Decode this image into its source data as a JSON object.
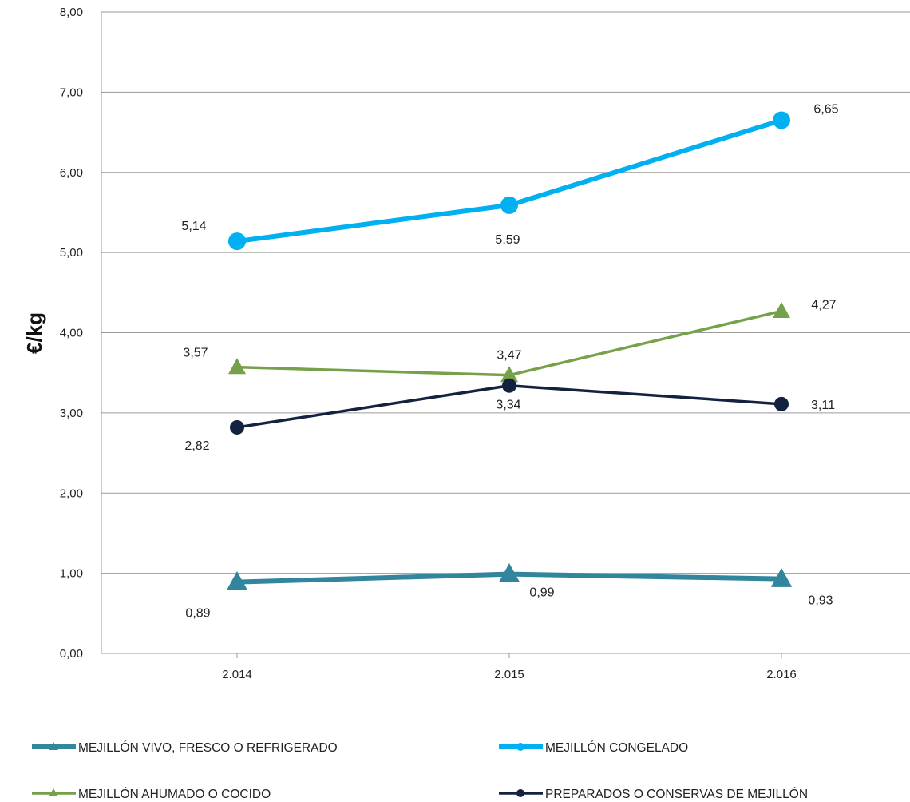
{
  "chart_data": {
    "type": "line",
    "ylabel": "€/kg",
    "ylim": [
      0,
      8
    ],
    "yticks": [
      "0,00",
      "1,00",
      "2,00",
      "3,00",
      "4,00",
      "5,00",
      "6,00",
      "7,00",
      "8,00"
    ],
    "categories": [
      "2.014",
      "2.015",
      "2.016"
    ],
    "grid": "horizontal",
    "legend_position": "bottom",
    "series": [
      {
        "name": "MEJILLÓN VIVO, FRESCO O REFRIGERADO",
        "values": [
          0.89,
          0.99,
          0.93
        ],
        "labels": [
          "0,89",
          "0,99",
          "0,93"
        ],
        "color": "#31859C",
        "marker": "triangle"
      },
      {
        "name": "MEJILLÓN CONGELADO",
        "values": [
          5.14,
          5.59,
          6.65
        ],
        "labels": [
          "5,14",
          "5,59",
          "6,65"
        ],
        "color": "#00B0F0",
        "marker": "circle"
      },
      {
        "name": "MEJILLÓN AHUMADO O COCIDO",
        "values": [
          3.57,
          3.47,
          4.27
        ],
        "labels": [
          "3,57",
          "3,47",
          "4,27"
        ],
        "color": "#77A04A",
        "marker": "triangle"
      },
      {
        "name": "PREPARADOS O CONSERVAS DE MEJILLÓN",
        "values": [
          2.82,
          3.34,
          3.11
        ],
        "labels": [
          "2,82",
          "3,34",
          "3,11"
        ],
        "color": "#13233F",
        "marker": "circle"
      }
    ]
  }
}
